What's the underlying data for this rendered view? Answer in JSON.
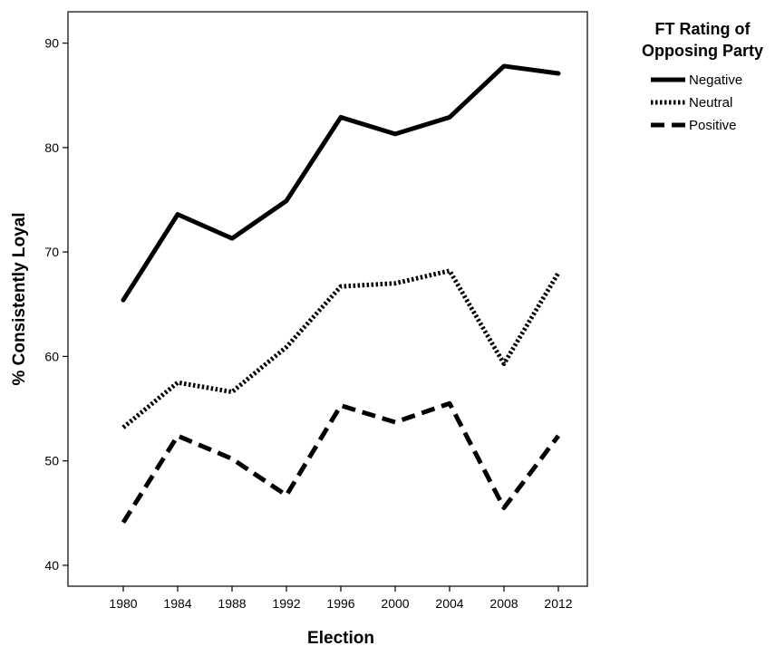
{
  "chart_data": {
    "type": "line",
    "xlabel": "Election",
    "ylabel": "% Consistently Loyal",
    "categories": [
      "1980",
      "1984",
      "1988",
      "1992",
      "1996",
      "2000",
      "2004",
      "2008",
      "2012"
    ],
    "ylim": [
      38,
      93
    ],
    "yticks": [
      40,
      50,
      60,
      70,
      80,
      90
    ],
    "grid": false,
    "legend": {
      "title_line1": "FT Rating of",
      "title_line2": "Opposing Party",
      "position": "right"
    },
    "series": [
      {
        "name": "Negative",
        "style": "solid",
        "color": "#000000",
        "values": [
          65.4,
          73.6,
          71.3,
          74.9,
          82.9,
          81.3,
          82.9,
          87.8,
          87.1
        ]
      },
      {
        "name": "Neutral",
        "style": "dotted",
        "color": "#000000",
        "values": [
          53.2,
          57.5,
          56.6,
          60.9,
          66.7,
          67.0,
          68.2,
          59.3,
          68.0
        ]
      },
      {
        "name": "Positive",
        "style": "dashed",
        "color": "#000000",
        "values": [
          44.1,
          52.4,
          50.2,
          46.7,
          55.3,
          53.7,
          55.5,
          45.5,
          52.4
        ]
      }
    ]
  }
}
